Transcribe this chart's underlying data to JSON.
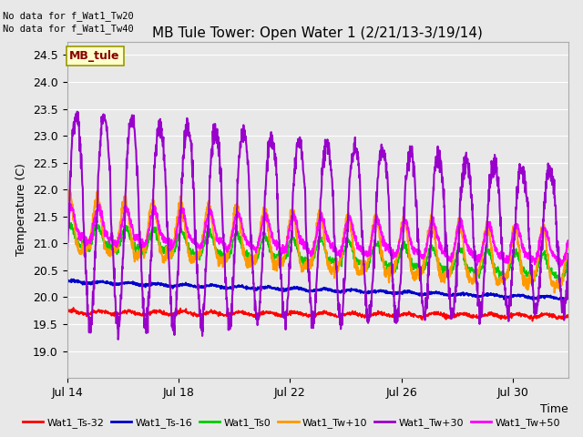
{
  "title": "MB Tule Tower: Open Water 1 (2/21/13-3/19/14)",
  "no_data_text_1": "No data for f_Wat1_Tw20",
  "no_data_text_2": "No data for f_Wat1_Tw40",
  "legend_box_label": "MB_tule",
  "xlabel": "Time",
  "ylabel": "Temperature (C)",
  "ylim": [
    18.5,
    24.75
  ],
  "yticks": [
    19.0,
    19.5,
    20.0,
    20.5,
    21.0,
    21.5,
    22.0,
    22.5,
    23.0,
    23.5,
    24.0,
    24.5
  ],
  "x_tick_labels": [
    "Jul 14",
    "Jul 18",
    "Jul 22",
    "Jul 26",
    "Jul 30"
  ],
  "x_tick_positions": [
    0,
    4,
    8,
    12,
    16
  ],
  "num_days": 18,
  "bg_color": "#e8e8e8",
  "plot_bg_color": "#e8e8e8",
  "grid_color": "#ffffff",
  "colors": {
    "Wat1_Ts-32": "#ff0000",
    "Wat1_Ts-16": "#0000cc",
    "Wat1_Ts0": "#00cc00",
    "Wat1_Tw+10": "#ff9900",
    "Wat1_Tw+30": "#9900cc",
    "Wat1_Tw+50": "#ff00ff"
  },
  "legend_entries": [
    {
      "label": "Wat1_Ts-32",
      "color": "#ff0000"
    },
    {
      "label": "Wat1_Ts-16",
      "color": "#0000cc"
    },
    {
      "label": "Wat1_Ts0",
      "color": "#00cc00"
    },
    {
      "label": "Wat1_Tw+10",
      "color": "#ff9900"
    },
    {
      "label": "Wat1_Tw+30",
      "color": "#9900cc"
    },
    {
      "label": "Wat1_Tw+50",
      "color": "#ff00ff"
    }
  ]
}
